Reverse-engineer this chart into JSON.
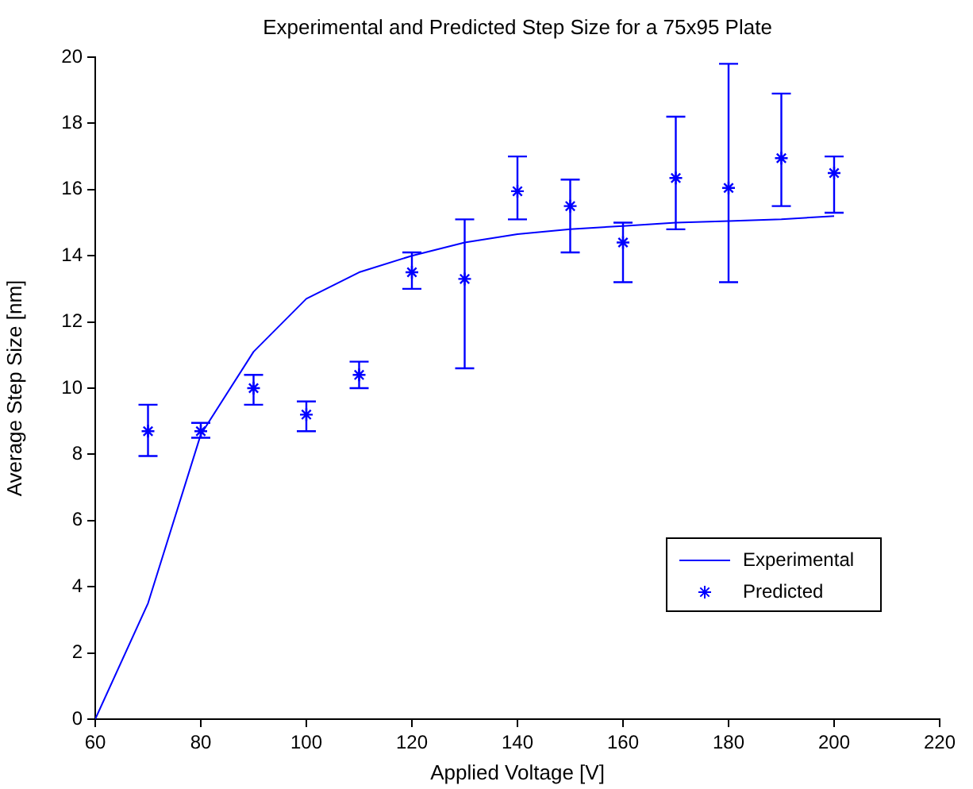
{
  "chart_data": {
    "type": "line",
    "title": "Experimental and Predicted Step Size for a 75x95 Plate",
    "xlabel": "Applied Voltage [V]",
    "ylabel": "Average Step Size [nm]",
    "xlim": [
      60,
      220
    ],
    "xticks": [
      60,
      80,
      100,
      120,
      140,
      160,
      180,
      200,
      220
    ],
    "ylim": [
      0,
      20
    ],
    "yticks": [
      0,
      2,
      4,
      6,
      8,
      10,
      12,
      14,
      16,
      18,
      20
    ],
    "grid": false,
    "legend": "bottom right",
    "series": [
      {
        "name": "Experimental",
        "type": "line",
        "color": "#0000ff",
        "marker": "none",
        "x": [
          60,
          70,
          80,
          90,
          100,
          110,
          120,
          130,
          140,
          150,
          160,
          170,
          180,
          190,
          200
        ],
        "values": [
          0,
          3.5,
          8.6,
          11.1,
          12.7,
          13.5,
          14.0,
          14.4,
          14.65,
          14.8,
          14.9,
          15.0,
          15.05,
          15.1,
          15.2
        ]
      },
      {
        "name": "Predicted",
        "type": "scatter",
        "color": "#0000ff",
        "marker": "cross",
        "x": [
          70,
          80,
          90,
          100,
          110,
          120,
          130,
          140,
          150,
          160,
          170,
          180,
          190,
          200
        ],
        "values": [
          8.7,
          8.7,
          10.0,
          9.2,
          10.4,
          13.5,
          13.3,
          15.95,
          15.5,
          14.4,
          16.35,
          16.05,
          16.95,
          16.5
        ],
        "errors": [
          [
            7.95,
            9.5
          ],
          [
            8.5,
            8.95
          ],
          [
            9.5,
            10.4
          ],
          [
            8.7,
            9.6
          ],
          [
            10.0,
            10.8
          ],
          [
            13.0,
            14.1
          ],
          [
            10.6,
            15.1
          ],
          [
            15.1,
            17.0
          ],
          [
            14.1,
            16.3
          ],
          [
            13.2,
            15.0
          ],
          [
            14.8,
            18.2
          ],
          [
            13.2,
            19.8
          ],
          [
            15.5,
            18.9
          ],
          [
            15.3,
            17.0
          ]
        ]
      }
    ]
  }
}
